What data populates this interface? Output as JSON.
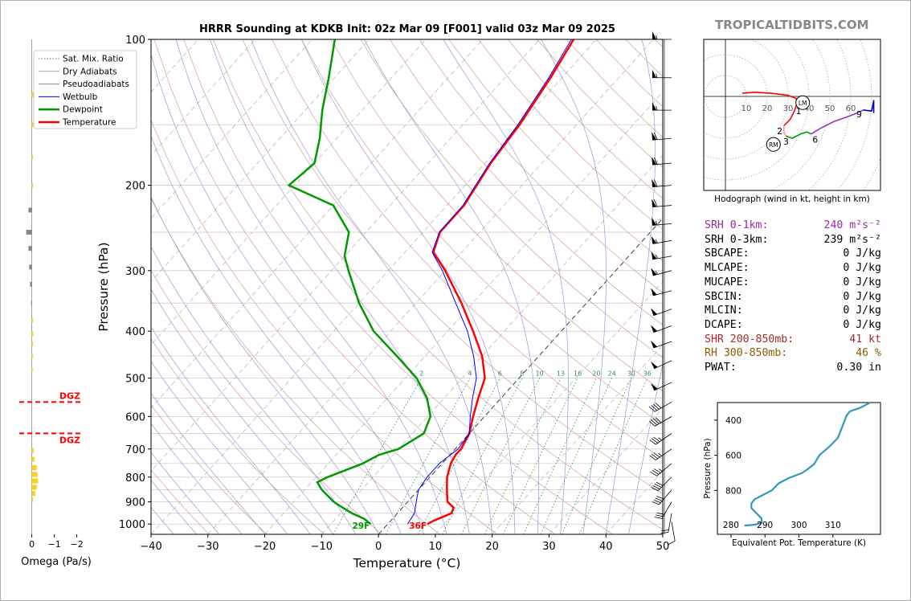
{
  "header": {
    "title": "HRRR Sounding at KDKB Init: 02z Mar 09 [F001] valid 03z Mar 09 2025",
    "brand": "TROPICALTIDBITS.COM"
  },
  "params": [
    {
      "label": "SRH 0-1km:",
      "value": "240 m²s⁻²",
      "color": "#9b2a9b"
    },
    {
      "label": "SRH 0-3km:",
      "value": "239 m²s⁻²",
      "color": "#000000"
    },
    {
      "label": "SBCAPE:",
      "value": "0 J/kg",
      "color": "#000000"
    },
    {
      "label": "MLCAPE:",
      "value": "0 J/kg",
      "color": "#000000"
    },
    {
      "label": "MUCAPE:",
      "value": "0 J/kg",
      "color": "#000000"
    },
    {
      "label": "SBCIN:",
      "value": "0 J/kg",
      "color": "#000000"
    },
    {
      "label": "MLCIN:",
      "value": "0 J/kg",
      "color": "#000000"
    },
    {
      "label": "DCAPE:",
      "value": "0 J/kg",
      "color": "#000000"
    },
    {
      "label": "SHR 200-850mb:",
      "value": "41 kt",
      "color": "#a52a2a"
    },
    {
      "label": "RH 300-850mb:",
      "value": "46 %",
      "color": "#8b5a00"
    },
    {
      "label": "PWAT:",
      "value": "0.30 in",
      "color": "#000000"
    }
  ],
  "chart_data": [
    {
      "type": "line",
      "name": "skewt",
      "xlabel": "Temperature (°C)",
      "ylabel": "Pressure (hPa)",
      "xlim": [
        -40,
        50
      ],
      "ylim": [
        1050,
        100
      ],
      "log_y": true,
      "skew": true,
      "x_ticks": [
        -40,
        -30,
        -20,
        -10,
        0,
        10,
        20,
        30,
        40,
        50
      ],
      "x_tick_labels": [
        "−40",
        "−30",
        "−20",
        "−10",
        "0",
        "10",
        "20",
        "30",
        "40",
        "50"
      ],
      "y_ticks": [
        1000,
        900,
        800,
        700,
        600,
        500,
        400,
        300,
        200,
        100
      ],
      "y_tick_labels": [
        "1000",
        "900",
        "800",
        "700",
        "600",
        "500",
        "400",
        "300",
        "200",
        "100"
      ],
      "legend": {
        "placement": "top-left",
        "entries": [
          {
            "label": "Sat. Mix. Ratio",
            "color": "#2e8b57",
            "style": "dotted",
            "width": 1
          },
          {
            "label": "Dry Adiabats",
            "color": "#aaaaaa",
            "style": "solid",
            "width": 1
          },
          {
            "label": "Pseudoadiabats",
            "color": "#888888",
            "style": "solid",
            "width": 1
          },
          {
            "label": "Wetbulb",
            "color": "#0000ff",
            "style": "solid",
            "width": 1
          },
          {
            "label": "Dewpoint",
            "color": "#009900",
            "style": "solid",
            "width": 2.5
          },
          {
            "label": "Temperature",
            "color": "#ff0000",
            "style": "solid",
            "width": 2.5
          }
        ]
      },
      "mixing_ratio_labels": [
        "2",
        "4",
        "6",
        "8",
        "10",
        "13",
        "16",
        "20",
        "24",
        "30",
        "36"
      ],
      "surface_labels": {
        "dewpoint": "29F",
        "temperature": "36F"
      },
      "series": [
        {
          "name": "Temperature",
          "color": "#ff0000",
          "points": [
            [
              1000,
              7.0
            ],
            [
              985,
              7.5
            ],
            [
              950,
              9.5
            ],
            [
              925,
              9.0
            ],
            [
              900,
              7.0
            ],
            [
              850,
              5.0
            ],
            [
              800,
              3.0
            ],
            [
              750,
              1.5
            ],
            [
              720,
              1.0
            ],
            [
              700,
              1.0
            ],
            [
              650,
              0.0
            ],
            [
              600,
              -2.0
            ],
            [
              550,
              -4.0
            ],
            [
              500,
              -6.0
            ],
            [
              450,
              -10.0
            ],
            [
              400,
              -15.5
            ],
            [
              350,
              -22.0
            ],
            [
              300,
              -30.0
            ],
            [
              275,
              -35.0
            ],
            [
              250,
              -37.0
            ],
            [
              220,
              -37.0
            ],
            [
              180,
              -39.0
            ],
            [
              150,
              -40.0
            ],
            [
              120,
              -42.0
            ],
            [
              100,
              -44.0
            ]
          ]
        },
        {
          "name": "Wetbulb",
          "color": "#0000ff",
          "points": [
            [
              1000,
              3.5
            ],
            [
              950,
              3.0
            ],
            [
              900,
              1.5
            ],
            [
              850,
              0.0
            ],
            [
              800,
              -0.5
            ],
            [
              750,
              -0.5
            ],
            [
              700,
              0.5
            ],
            [
              650,
              0.0
            ],
            [
              600,
              -2.5
            ],
            [
              550,
              -5.0
            ],
            [
              500,
              -7.5
            ],
            [
              450,
              -11.5
            ],
            [
              400,
              -16.5
            ],
            [
              350,
              -23.0
            ],
            [
              300,
              -30.5
            ],
            [
              275,
              -35.2
            ],
            [
              250,
              -37.1
            ],
            [
              220,
              -37.2
            ],
            [
              180,
              -39.2
            ],
            [
              150,
              -40.3
            ],
            [
              120,
              -42.3
            ],
            [
              100,
              -44.4
            ]
          ]
        },
        {
          "name": "Dewpoint",
          "color": "#009900",
          "points": [
            [
              1000,
              -3.0
            ],
            [
              975,
              -5.0
            ],
            [
              950,
              -8.0
            ],
            [
              920,
              -11.0
            ],
            [
              900,
              -13.0
            ],
            [
              850,
              -17.0
            ],
            [
              820,
              -19.0
            ],
            [
              800,
              -18.0
            ],
            [
              750,
              -14.0
            ],
            [
              720,
              -12.5
            ],
            [
              700,
              -10.0
            ],
            [
              650,
              -8.0
            ],
            [
              600,
              -9.5
            ],
            [
              550,
              -13.0
            ],
            [
              500,
              -18.0
            ],
            [
              450,
              -25.0
            ],
            [
              400,
              -33.0
            ],
            [
              350,
              -40.0
            ],
            [
              300,
              -47.0
            ],
            [
              280,
              -50.0
            ],
            [
              250,
              -53.0
            ],
            [
              220,
              -60.0
            ],
            [
              200,
              -71.0
            ],
            [
              180,
              -70.0
            ],
            [
              160,
              -73.0
            ],
            [
              140,
              -77.0
            ],
            [
              120,
              -81.0
            ],
            [
              100,
              -86.0
            ]
          ]
        }
      ],
      "wind_barbs": [
        {
          "p": 100,
          "speed": 55,
          "dir": 270
        },
        {
          "p": 120,
          "speed": 55,
          "dir": 270
        },
        {
          "p": 140,
          "speed": 55,
          "dir": 270
        },
        {
          "p": 160,
          "speed": 60,
          "dir": 265
        },
        {
          "p": 180,
          "speed": 60,
          "dir": 265
        },
        {
          "p": 200,
          "speed": 60,
          "dir": 265
        },
        {
          "p": 220,
          "speed": 60,
          "dir": 265
        },
        {
          "p": 240,
          "speed": 55,
          "dir": 265
        },
        {
          "p": 260,
          "speed": 55,
          "dir": 260
        },
        {
          "p": 280,
          "speed": 55,
          "dir": 260
        },
        {
          "p": 300,
          "speed": 55,
          "dir": 255
        },
        {
          "p": 330,
          "speed": 50,
          "dir": 255
        },
        {
          "p": 360,
          "speed": 50,
          "dir": 250
        },
        {
          "p": 390,
          "speed": 50,
          "dir": 250
        },
        {
          "p": 420,
          "speed": 50,
          "dir": 250
        },
        {
          "p": 460,
          "speed": 50,
          "dir": 245
        },
        {
          "p": 510,
          "speed": 50,
          "dir": 245
        },
        {
          "p": 560,
          "speed": 40,
          "dir": 240
        },
        {
          "p": 600,
          "speed": 40,
          "dir": 240
        },
        {
          "p": 650,
          "speed": 35,
          "dir": 235
        },
        {
          "p": 700,
          "speed": 35,
          "dir": 235
        },
        {
          "p": 750,
          "speed": 35,
          "dir": 230
        },
        {
          "p": 800,
          "speed": 40,
          "dir": 225
        },
        {
          "p": 850,
          "speed": 40,
          "dir": 220
        },
        {
          "p": 900,
          "speed": 30,
          "dir": 210
        },
        {
          "p": 950,
          "speed": 20,
          "dir": 190
        },
        {
          "p": 990,
          "speed": 10,
          "dir": 170
        }
      ]
    },
    {
      "type": "bar",
      "name": "omega",
      "xlabel": "Omega (Pa/s)",
      "x_ticks": [
        0,
        -1,
        -2
      ],
      "x_tick_labels": [
        "0",
        "−1",
        "−2"
      ],
      "xlim": [
        0.2,
        -2.3
      ],
      "markers": [
        {
          "p": 560,
          "label": "DGZ",
          "color": "#ff0000"
        },
        {
          "p": 650,
          "label": "DGZ",
          "color": "#ff0000"
        }
      ],
      "values": [
        {
          "p": 130,
          "v": -0.07
        },
        {
          "p": 150,
          "v": -0.07
        },
        {
          "p": 175,
          "v": -0.05
        },
        {
          "p": 200,
          "v": -0.05
        },
        {
          "p": 225,
          "v": 0.15
        },
        {
          "p": 250,
          "v": 0.25
        },
        {
          "p": 270,
          "v": 0.15
        },
        {
          "p": 295,
          "v": 0.12
        },
        {
          "p": 320,
          "v": 0.08
        },
        {
          "p": 350,
          "v": 0.03
        },
        {
          "p": 380,
          "v": -0.05
        },
        {
          "p": 405,
          "v": -0.06
        },
        {
          "p": 425,
          "v": -0.05
        },
        {
          "p": 450,
          "v": -0.04
        },
        {
          "p": 480,
          "v": -0.03
        },
        {
          "p": 705,
          "v": -0.08
        },
        {
          "p": 735,
          "v": -0.12
        },
        {
          "p": 765,
          "v": -0.22
        },
        {
          "p": 790,
          "v": -0.25
        },
        {
          "p": 815,
          "v": -0.28
        },
        {
          "p": 840,
          "v": -0.22
        },
        {
          "p": 865,
          "v": -0.15
        },
        {
          "p": 890,
          "v": -0.05
        }
      ]
    },
    {
      "type": "line",
      "name": "hodograph",
      "xlabel": "Hodograph (wind in kt, height in km)",
      "ring_labels": [
        "10",
        "20",
        "30",
        "40",
        "50",
        "60"
      ],
      "height_labels": [
        "1",
        "2",
        "3",
        "6",
        "9"
      ],
      "markers": [
        {
          "label": "LM",
          "u": 37,
          "v": -3
        },
        {
          "label": "RM",
          "u": 23,
          "v": -23
        }
      ],
      "segments": [
        {
          "color": "#ff0000",
          "points": [
            [
              8,
              1.5
            ],
            [
              14,
              2
            ],
            [
              22,
              1.5
            ],
            [
              30,
              0.5
            ],
            [
              34,
              -1
            ],
            [
              34,
              -4
            ],
            [
              33,
              -7
            ],
            [
              31,
              -11
            ],
            [
              28,
              -14
            ]
          ]
        },
        {
          "color": "#ff9999",
          "points": [
            [
              28,
              -14
            ],
            [
              28,
              -17
            ],
            [
              29,
              -19
            ]
          ]
        },
        {
          "color": "#009900",
          "points": [
            [
              29,
              -19
            ],
            [
              32,
              -20
            ],
            [
              36,
              -18
            ],
            [
              39,
              -17
            ],
            [
              41,
              -18
            ]
          ]
        },
        {
          "color": "#9b30c8",
          "points": [
            [
              41,
              -18
            ],
            [
              46,
              -15
            ],
            [
              52,
              -12
            ],
            [
              59,
              -9.5
            ],
            [
              63,
              -8
            ],
            [
              66,
              -6.5
            ]
          ]
        },
        {
          "color": "#0000cc",
          "points": [
            [
              66,
              -6.5
            ],
            [
              70,
              -7
            ],
            [
              71,
              -2
            ],
            [
              71,
              -8
            ]
          ]
        }
      ],
      "label_points": [
        {
          "t": "1",
          "u": 35,
          "v": -7
        },
        {
          "t": "2",
          "u": 26,
          "v": -16.5
        },
        {
          "t": "3",
          "u": 29,
          "v": -21.5
        },
        {
          "t": "6",
          "u": 43,
          "v": -20.5
        },
        {
          "t": "9",
          "u": 64,
          "v": -8.5
        }
      ]
    },
    {
      "type": "line",
      "name": "theta-e",
      "xlabel": "Equivalent Pot. Temperature (K)",
      "ylabel": "Pressure (hPa)",
      "xlim": [
        276,
        324
      ],
      "ylim": [
        1050,
        300
      ],
      "x_ticks": [
        280,
        290,
        300,
        310
      ],
      "x_tick_labels": [
        "280",
        "290",
        "300",
        "310"
      ],
      "y_ticks": [
        400,
        600,
        800
      ],
      "y_tick_labels": [
        "400",
        "600",
        "800"
      ],
      "color": "#3399bb",
      "points": [
        [
          1000,
          284
        ],
        [
          995,
          287
        ],
        [
          985,
          289
        ],
        [
          960,
          289
        ],
        [
          930,
          287.5
        ],
        [
          900,
          286
        ],
        [
          875,
          286
        ],
        [
          850,
          287
        ],
        [
          830,
          289
        ],
        [
          800,
          292
        ],
        [
          760,
          294
        ],
        [
          730,
          297
        ],
        [
          700,
          301
        ],
        [
          680,
          302.5
        ],
        [
          650,
          304.5
        ],
        [
          600,
          306
        ],
        [
          550,
          309
        ],
        [
          500,
          311.5
        ],
        [
          450,
          312.5
        ],
        [
          400,
          313.5
        ],
        [
          375,
          314
        ],
        [
          350,
          315
        ],
        [
          330,
          318
        ],
        [
          300,
          321
        ]
      ]
    }
  ]
}
